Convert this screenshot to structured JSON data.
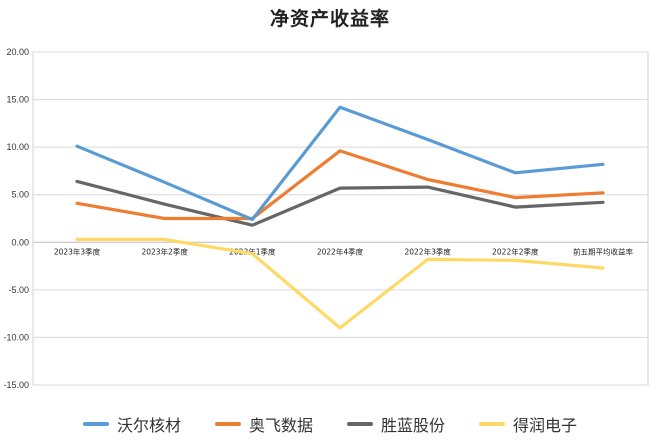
{
  "chart_data": {
    "type": "line",
    "title": "净资产收益率",
    "xlabel": "",
    "ylabel": "",
    "categories": [
      "2023年3季度",
      "2023年2季度",
      "2023年1季度",
      "2022年4季度",
      "2022年3季度",
      "2022年2季度",
      "前五期平均收益率"
    ],
    "ylim": [
      -15,
      20
    ],
    "yticks": [
      "20.00",
      "15.00",
      "10.00",
      "5.00",
      "0.00",
      "-5.00",
      "-10.00",
      "-15.00"
    ],
    "grid": true,
    "legend_position": "bottom",
    "series": [
      {
        "name": "沃尔核材",
        "color": "#5b9bd5",
        "values": [
          10.1,
          6.3,
          2.4,
          14.2,
          10.8,
          7.3,
          8.2
        ]
      },
      {
        "name": "奥飞数据",
        "color": "#ed7d31",
        "values": [
          4.1,
          2.5,
          2.5,
          9.6,
          6.6,
          4.7,
          5.2
        ]
      },
      {
        "name": "胜蓝股份",
        "color": "#666666",
        "values": [
          6.4,
          4.0,
          1.8,
          5.7,
          5.8,
          3.7,
          4.2
        ]
      },
      {
        "name": "得润电子",
        "color": "#ffd966",
        "values": [
          0.3,
          0.3,
          -1.2,
          -9.0,
          -1.8,
          -1.9,
          -2.7
        ]
      }
    ]
  }
}
